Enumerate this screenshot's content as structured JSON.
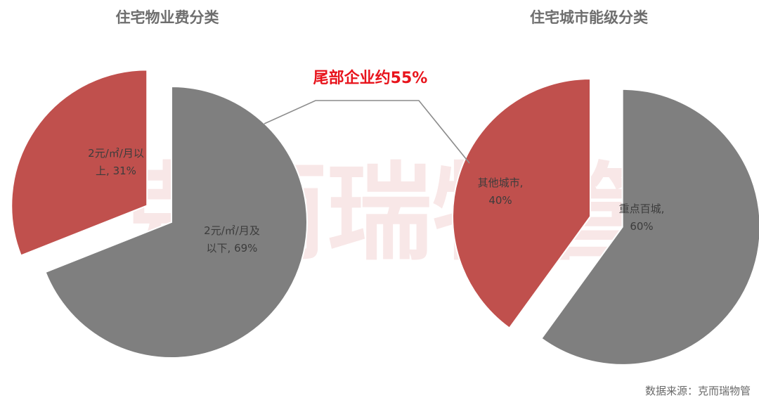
{
  "colors": {
    "red": "#c0504d",
    "gray": "#7f7f7f",
    "callout": "#e8141c"
  },
  "watermark": "克而瑞物管",
  "callout": "尾部企业约55%",
  "source": "数据来源：克而瑞物管",
  "chart_data": [
    {
      "type": "pie",
      "title": "住宅物业费分类",
      "slices": [
        {
          "label_lines": [
            "2元/㎡/月以",
            "上, 31%"
          ],
          "value": 31,
          "color": "#c0504d",
          "exploded": true
        },
        {
          "label_lines": [
            "2元/㎡/月及",
            "以下, 69%"
          ],
          "value": 69,
          "color": "#7f7f7f",
          "exploded": false
        }
      ]
    },
    {
      "type": "pie",
      "title": "住宅城市能级分类",
      "slices": [
        {
          "label_lines": [
            "其他城市,",
            "40%"
          ],
          "value": 40,
          "color": "#c0504d",
          "exploded": false
        },
        {
          "label_lines": [
            "重点百城,",
            "60%"
          ],
          "value": 60,
          "color": "#7f7f7f",
          "exploded": true
        }
      ]
    }
  ]
}
